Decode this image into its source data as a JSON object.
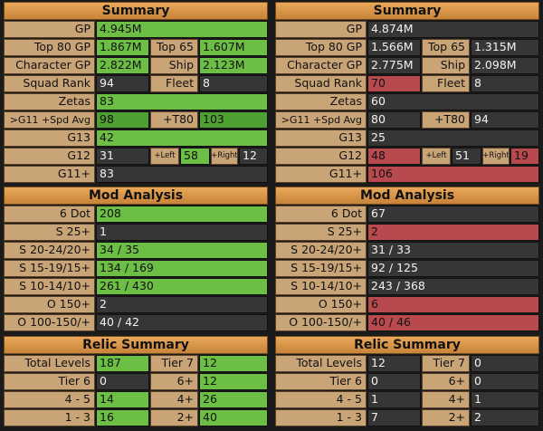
{
  "colors": {
    "header": "#e0a257",
    "label": "#c9a477",
    "green": "#6cbe45",
    "dark": "#363636",
    "red": "#b84a4f",
    "background": "#1b1b1b"
  },
  "left": {
    "summary_title": "Summary",
    "gp": {
      "label": "GP",
      "value": "4.945M"
    },
    "top80": {
      "label": "Top 80 GP",
      "value": "1.867M",
      "label2": "Top 65",
      "value2": "1.607M"
    },
    "character": {
      "label": "Character GP",
      "value": "2.822M",
      "label2": "Ship",
      "value2": "2.123M"
    },
    "squad": {
      "label": "Squad Rank",
      "value": "94",
      "label2": "Fleet",
      "value2": "8"
    },
    "zetas": {
      "label": "Zetas",
      "value": "83"
    },
    "g11spd": {
      "label": ">G11 +Spd Avg",
      "value": "98",
      "label2": "+T80",
      "value2": "103"
    },
    "g13": {
      "label": "G13",
      "value": "42"
    },
    "g12": {
      "label": "G12",
      "value": "31",
      "left_label": "+Left",
      "left_value": "58",
      "right_label": "+Right",
      "right_value": "12"
    },
    "g11plus": {
      "label": "G11+",
      "value": "83"
    },
    "mod_title": "Mod Analysis",
    "mods": [
      {
        "label": "6 Dot",
        "value": "208"
      },
      {
        "label": "S 25+",
        "value": "1"
      },
      {
        "label": "S 20-24/20+",
        "value": "34 / 35"
      },
      {
        "label": "S 15-19/15+",
        "value": "134 / 169"
      },
      {
        "label": "S 10-14/10+",
        "value": "261 / 430"
      },
      {
        "label": "O 150+",
        "value": "2"
      },
      {
        "label": "O 100-150/+",
        "value": "40 / 42"
      }
    ],
    "relic_title": "Relic Summary",
    "relic": [
      {
        "label": "Total Levels",
        "value": "187",
        "label2": "Tier 7",
        "value2": "12"
      },
      {
        "label": "Tier 6",
        "value": "0",
        "label2": "6+",
        "value2": "12"
      },
      {
        "label": "4 - 5",
        "value": "14",
        "label2": "4+",
        "value2": "26"
      },
      {
        "label": "1 - 3",
        "value": "16",
        "label2": "2+",
        "value2": "40"
      }
    ]
  },
  "right": {
    "summary_title": "Summary",
    "gp": {
      "label": "GP",
      "value": "4.874M"
    },
    "top80": {
      "label": "Top 80 GP",
      "value": "1.566M",
      "label2": "Top 65",
      "value2": "1.315M"
    },
    "character": {
      "label": "Character GP",
      "value": "2.775M",
      "label2": "Ship",
      "value2": "2.098M"
    },
    "squad": {
      "label": "Squad Rank",
      "value": "70",
      "label2": "Fleet",
      "value2": "8"
    },
    "zetas": {
      "label": "Zetas",
      "value": "60"
    },
    "g11spd": {
      "label": ">G11 +Spd Avg",
      "value": "80",
      "label2": "+T80",
      "value2": "94"
    },
    "g13": {
      "label": "G13",
      "value": "25"
    },
    "g12": {
      "label": "G12",
      "value": "48",
      "left_label": "+Left",
      "left_value": "51",
      "right_label": "+Right",
      "right_value": "19"
    },
    "g11plus": {
      "label": "G11+",
      "value": "106"
    },
    "mod_title": "Mod Analysis",
    "mods": [
      {
        "label": "6 Dot",
        "value": "67"
      },
      {
        "label": "S 25+",
        "value": "2"
      },
      {
        "label": "S 20-24/20+",
        "value": "31 / 33"
      },
      {
        "label": "S 15-19/15+",
        "value": "92 / 125"
      },
      {
        "label": "S 10-14/10+",
        "value": "243 / 368"
      },
      {
        "label": "O 150+",
        "value": "6"
      },
      {
        "label": "O 100-150/+",
        "value": "40 / 46"
      }
    ],
    "relic_title": "Relic Summary",
    "relic": [
      {
        "label": "Total Levels",
        "value": "12",
        "label2": "Tier 7",
        "value2": "0"
      },
      {
        "label": "Tier 6",
        "value": "0",
        "label2": "6+",
        "value2": "0"
      },
      {
        "label": "4 - 5",
        "value": "1",
        "label2": "4+",
        "value2": "1"
      },
      {
        "label": "1 - 3",
        "value": "7",
        "label2": "2+",
        "value2": "2"
      }
    ]
  }
}
